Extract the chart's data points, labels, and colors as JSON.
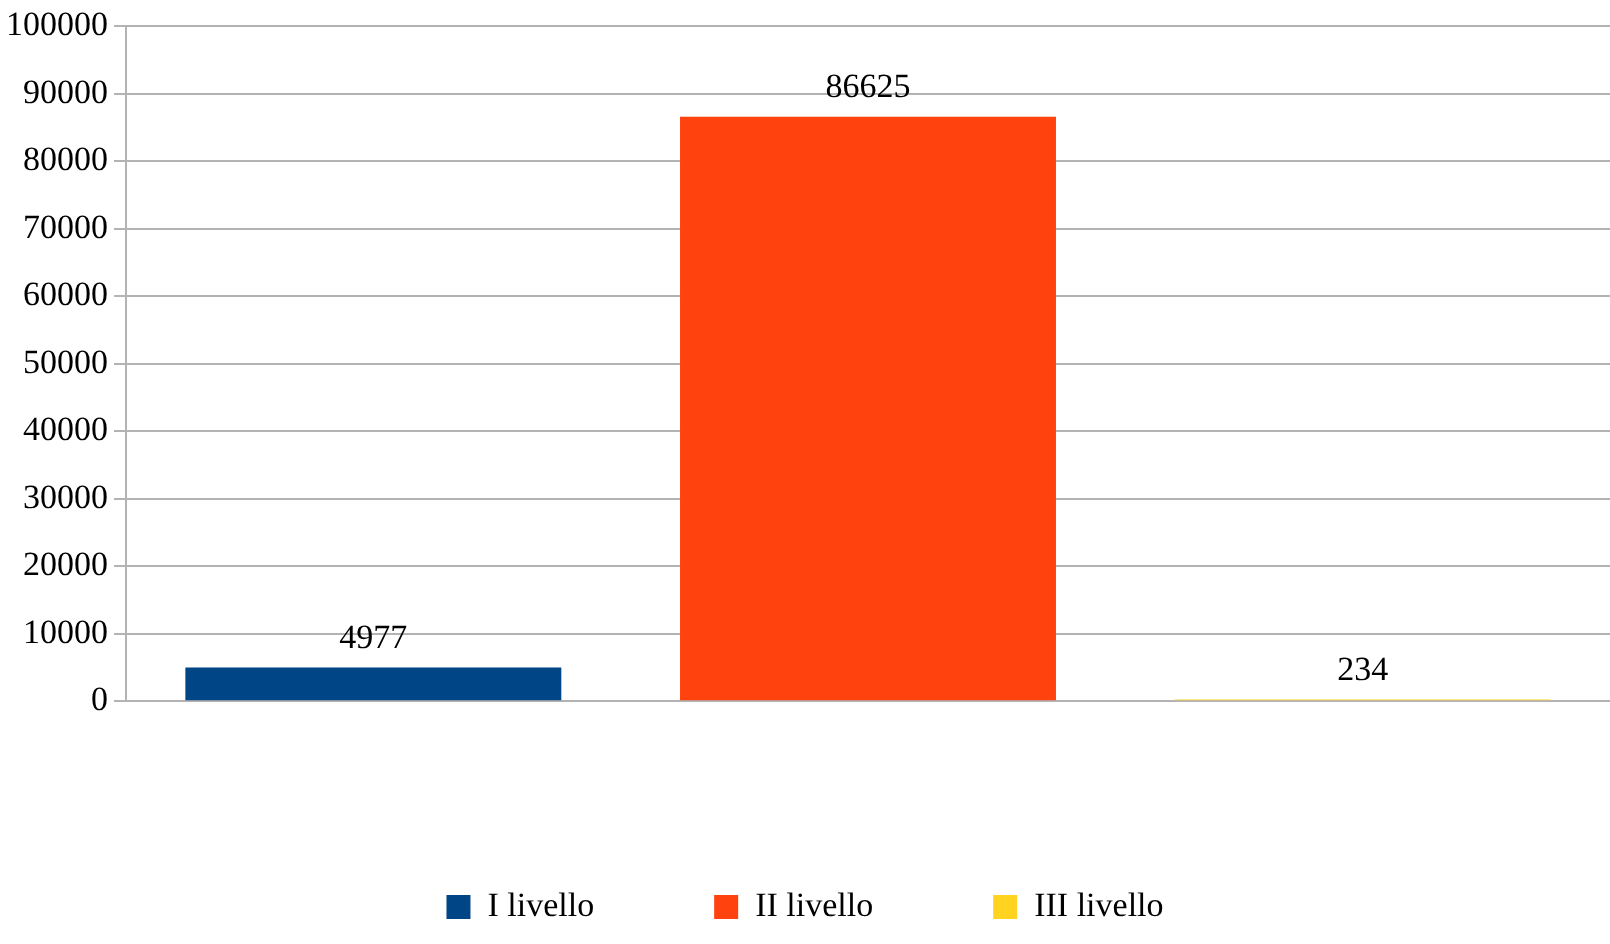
{
  "chart_data": {
    "type": "bar",
    "categories": [
      null
    ],
    "series": [
      {
        "name": "I livello",
        "color": "#004586",
        "values": [
          4977
        ]
      },
      {
        "name": "II livello",
        "color": "#ff420e",
        "values": [
          86625
        ]
      },
      {
        "name": "III livello",
        "color": "#ffd320",
        "values": [
          234
        ]
      }
    ],
    "ylim": [
      0,
      100000
    ],
    "yticks": [
      0,
      10000,
      20000,
      30000,
      40000,
      50000,
      60000,
      70000,
      80000,
      90000,
      100000
    ],
    "grid": "y",
    "legend": "bottom",
    "data_labels": true
  }
}
